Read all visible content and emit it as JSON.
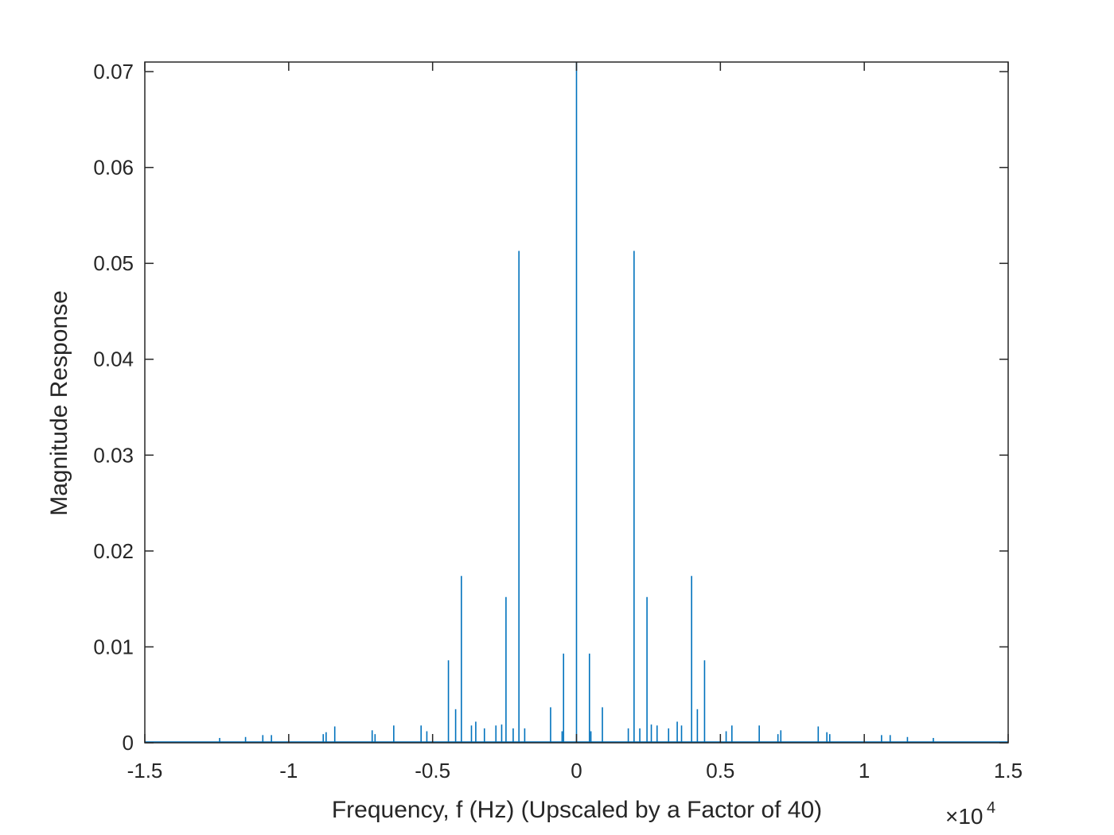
{
  "chart_data": {
    "type": "line",
    "xlabel": "Frequency, f (Hz) (Upscaled by a Factor of 40)",
    "ylabel": "Magnitude Response",
    "x_exponent_label": {
      "times": "×10",
      "power": "4"
    },
    "xlim": [
      -1.5,
      1.5
    ],
    "ylim": [
      0,
      0.071
    ],
    "x_unit_multiplier": 10000,
    "xticks": [
      -1.5,
      -1,
      -0.5,
      0,
      0.5,
      1,
      1.5
    ],
    "xtick_labels": [
      "-1.5",
      "-1",
      "-0.5",
      "0",
      "0.5",
      "1",
      "1.5"
    ],
    "yticks": [
      0,
      0.01,
      0.02,
      0.03,
      0.04,
      0.05,
      0.06,
      0.07
    ],
    "ytick_labels": [
      "0",
      "0.01",
      "0.02",
      "0.03",
      "0.04",
      "0.05",
      "0.06",
      "0.07"
    ],
    "grid": false,
    "line_color": "#0072BD",
    "series": [
      {
        "x": [
          -0.445,
          -0.4,
          -0.42,
          -0.245,
          -0.2,
          -0.09,
          -0.045,
          0,
          0.045,
          0.09,
          0.2,
          0.245,
          0.4,
          0.42,
          0.445,
          -0.365,
          -0.35,
          -0.32,
          -0.28,
          -0.26,
          -0.22,
          -0.18,
          -0.05,
          -0.54,
          -0.52,
          -0.635,
          -0.71,
          -0.7,
          -0.84,
          -0.87,
          -0.88,
          -1.06,
          -1.09,
          -1.15,
          -1.24,
          0.365,
          0.35,
          0.32,
          0.28,
          0.26,
          0.22,
          0.18,
          0.05,
          0.54,
          0.52,
          0.635,
          0.71,
          0.7,
          0.84,
          0.87,
          0.88,
          1.06,
          1.09,
          1.15,
          1.24
        ],
        "y": [
          0.0086,
          0.0174,
          0.0035,
          0.0152,
          0.0513,
          0.0037,
          0.0093,
          0.071,
          0.0093,
          0.0037,
          0.0513,
          0.0152,
          0.0174,
          0.0035,
          0.0086,
          0.0018,
          0.0022,
          0.0015,
          0.0018,
          0.0019,
          0.0015,
          0.0015,
          0.0012,
          0.0018,
          0.0012,
          0.0018,
          0.0013,
          0.0009,
          0.0017,
          0.0011,
          0.0009,
          0.0008,
          0.0008,
          0.0006,
          0.0005,
          0.0018,
          0.0022,
          0.0015,
          0.0018,
          0.0019,
          0.0015,
          0.0015,
          0.0012,
          0.0018,
          0.0012,
          0.0018,
          0.0013,
          0.0009,
          0.0017,
          0.0011,
          0.0009,
          0.0008,
          0.0008,
          0.0006,
          0.0005
        ]
      }
    ]
  }
}
